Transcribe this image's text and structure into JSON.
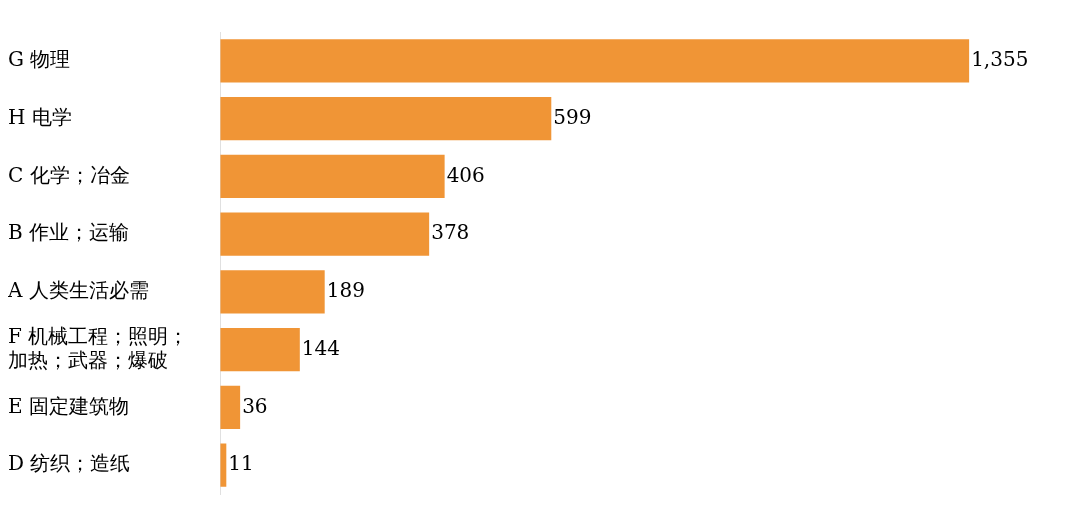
{
  "chart_data": {
    "type": "bar",
    "orientation": "horizontal",
    "categories": [
      "G 物理",
      "H 电学",
      "C 化学；冶金",
      "B 作业；运输",
      "A 人类生活必需",
      "F 机械工程；照明；加热；武器；爆破",
      "E 固定建筑物",
      "D 纺织；造纸"
    ],
    "values": [
      1355,
      599,
      406,
      378,
      189,
      144,
      36,
      11
    ],
    "value_labels": [
      "1,355",
      "599",
      "406",
      "378",
      "189",
      "144",
      "36",
      "11"
    ],
    "color": "#f09536"
  }
}
